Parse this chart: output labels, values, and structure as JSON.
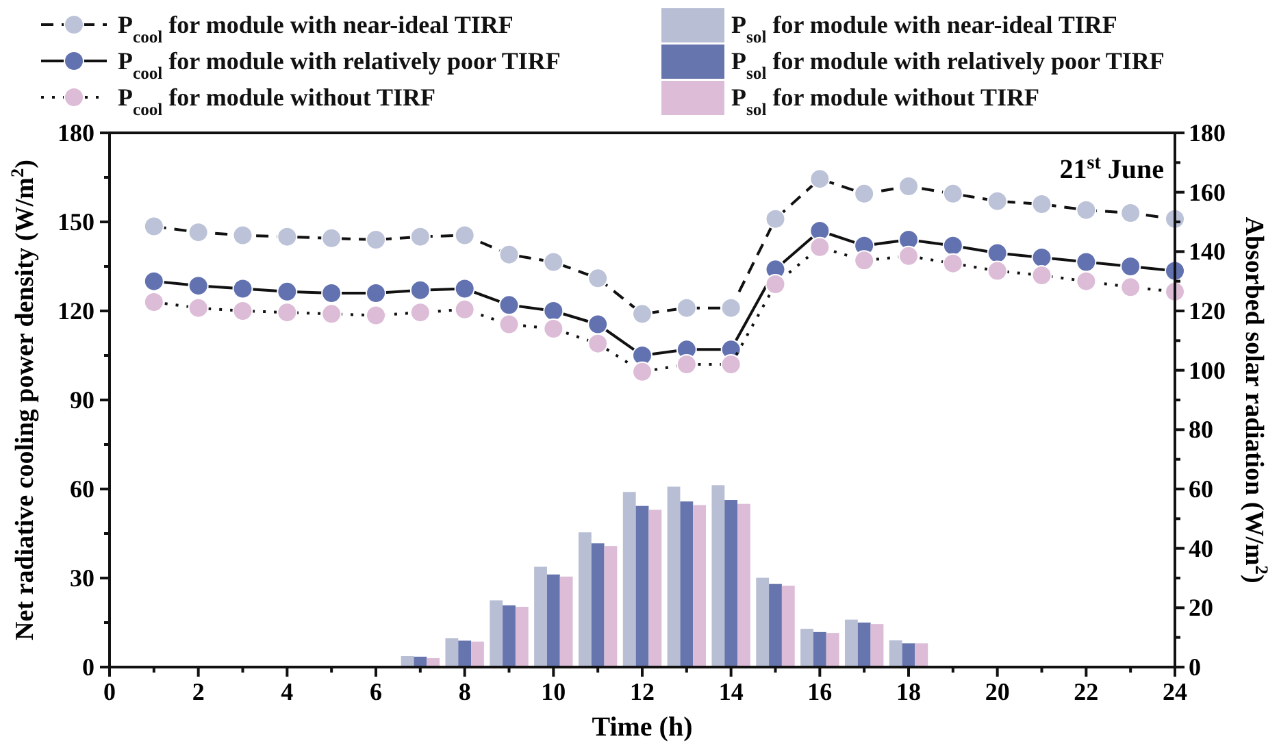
{
  "chart_data": {
    "type": "line",
    "xlabel": "Time (h)",
    "ylabel": "Net radiative cooling power density (W/m$^{2}$)",
    "y2label": "Absorbed solar radiation (W/m$^{2}$)",
    "annotations": [
      "21$^{st}$ June"
    ],
    "x": [
      1,
      2,
      3,
      4,
      5,
      6,
      7,
      8,
      9,
      10,
      11,
      12,
      13,
      14,
      15,
      16,
      17,
      18,
      19,
      20,
      21,
      22,
      23,
      24
    ],
    "xlim": [
      0,
      24
    ],
    "xticks": [
      0,
      {
        "value": 1,
        "label": null
      },
      2,
      {
        "value": 3,
        "label": null
      },
      4,
      {
        "value": 5,
        "label": null
      },
      6,
      {
        "value": 7,
        "label": null
      },
      8,
      {
        "value": 9,
        "label": null
      },
      10,
      {
        "value": 11,
        "label": null
      },
      12,
      {
        "value": 13,
        "label": null
      },
      14,
      {
        "value": 15,
        "label": null
      },
      16,
      {
        "value": 17,
        "label": null
      },
      18,
      {
        "value": 19,
        "label": null
      },
      20,
      {
        "value": 21,
        "label": null
      },
      22,
      {
        "value": 23,
        "label": null
      },
      24
    ],
    "ylim": [
      0,
      180
    ],
    "yticks": [
      0,
      {
        "value": 15,
        "label": null
      },
      30,
      {
        "value": 45,
        "label": null
      },
      60,
      {
        "value": 75,
        "label": null
      },
      90,
      {
        "value": 105,
        "label": null
      },
      120,
      {
        "value": 135,
        "label": null
      },
      150,
      {
        "value": 165,
        "label": null
      },
      180
    ],
    "y2lim": [
      0,
      180
    ],
    "y2ticks": [
      0,
      {
        "value": 10,
        "label": null
      },
      20,
      {
        "value": 30,
        "label": null
      },
      40,
      {
        "value": 50,
        "label": null
      },
      60,
      {
        "value": 70,
        "label": null
      },
      80,
      {
        "value": 90,
        "label": null
      },
      100,
      {
        "value": 110,
        "label": null
      },
      120,
      {
        "value": 130,
        "label": null
      },
      140,
      {
        "value": 150,
        "label": null
      },
      160,
      {
        "value": 170,
        "label": null
      },
      180
    ],
    "grid": false,
    "legend": "top",
    "marker": "circle",
    "series": [
      {
        "name": "P$_{cool}$ for module with near-ideal TIRF",
        "line_style": "dashed",
        "color": "#bcc2d8",
        "values": [
          148.5,
          146.5,
          145.5,
          145,
          144.5,
          144,
          145,
          145.5,
          139,
          136.5,
          131,
          119,
          121,
          121,
          151,
          164.5,
          159.5,
          162,
          159.5,
          157,
          156,
          154,
          153,
          151
        ]
      },
      {
        "name": "P$_{cool}$ for module with relatively poor TIRF",
        "line_style": "solid",
        "color": "#6272b0",
        "values": [
          130,
          128.5,
          127.5,
          126.5,
          126,
          126,
          127,
          127.5,
          122,
          120,
          115.5,
          105,
          107,
          107,
          134,
          147,
          142,
          144,
          142,
          139.5,
          138,
          136.5,
          135,
          133.5
        ]
      },
      {
        "name": "P$_{cool}$ for module without TIRF",
        "line_style": "dotted",
        "color": "#dcbcd6",
        "values": [
          123,
          121,
          120,
          119.5,
          119,
          118.5,
          119.5,
          120.5,
          115.5,
          114,
          109,
          99.5,
          102,
          102,
          129,
          141.5,
          137,
          138.5,
          136,
          133.5,
          132,
          130,
          128,
          126.5
        ]
      },
      {
        "name": "P$_{sol}$ for module with near-ideal TIRF",
        "type": "bar",
        "axis": "y2",
        "color": "#b8bed4",
        "x": [
          7,
          8,
          9,
          10,
          11,
          12,
          13,
          14,
          15,
          16,
          17,
          18
        ],
        "values": [
          3.7,
          9.7,
          22.5,
          33.8,
          45.4,
          59,
          60.8,
          61.3,
          30.1,
          12.9,
          16,
          9
        ]
      },
      {
        "name": "P$_{sol}$ for module with relatively poor TIRF",
        "type": "bar",
        "axis": "y2",
        "color": "#6675ad",
        "x": [
          7,
          8,
          9,
          10,
          11,
          12,
          13,
          14,
          15,
          16,
          17,
          18
        ],
        "values": [
          3.5,
          8.9,
          20.8,
          31.2,
          41.7,
          54.3,
          55.8,
          56.3,
          28,
          11.8,
          15,
          8
        ]
      },
      {
        "name": "P$_{sol}$ for module without TIRF",
        "type": "bar",
        "axis": "y2",
        "color": "#dcbcd6",
        "x": [
          7,
          8,
          9,
          10,
          11,
          12,
          13,
          14,
          15,
          16,
          17,
          18
        ],
        "values": [
          3,
          8.6,
          20.3,
          30.5,
          40.8,
          53,
          54.6,
          55,
          27.4,
          11.5,
          14.5,
          8
        ]
      }
    ]
  }
}
